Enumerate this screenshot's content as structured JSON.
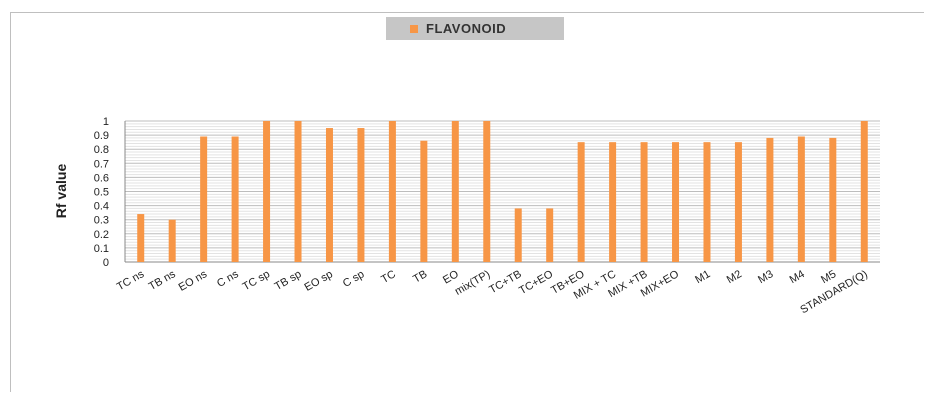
{
  "chart_data": {
    "type": "bar",
    "title": "",
    "xlabel": "",
    "ylabel": "Rf value",
    "ylim": [
      0,
      1
    ],
    "yticks": [
      "0",
      "0.1",
      "0.2",
      "0.3",
      "0.4",
      "0.5",
      "0.6",
      "0.7",
      "0.8",
      "0.9",
      "1"
    ],
    "grid": true,
    "legend_position": "top-center",
    "bar_color": "#f79646",
    "legend_color": "#c6c6c6",
    "categories": [
      "TC ns",
      "TB ns",
      "EO ns",
      "C ns",
      "TC sp",
      "TB sp",
      "EO sp",
      "C sp",
      "TC",
      "TB",
      "EO",
      "mix(TP)",
      "TC+TB",
      "TC+EO",
      "TB+EO",
      "MIX + TC",
      "MIX +TB",
      "MIX+EO",
      "M1",
      "M2",
      "M3",
      "M4",
      "M5",
      "STANDARD(Q)"
    ],
    "series": [
      {
        "name": "FLAVONOID",
        "values": [
          0.34,
          0.3,
          0.89,
          0.89,
          1,
          1,
          0.95,
          0.95,
          1,
          0.86,
          1,
          1,
          0.38,
          0.38,
          0.85,
          0.85,
          0.85,
          0.85,
          0.85,
          0.85,
          0.88,
          0.89,
          0.88,
          1
        ]
      }
    ]
  }
}
